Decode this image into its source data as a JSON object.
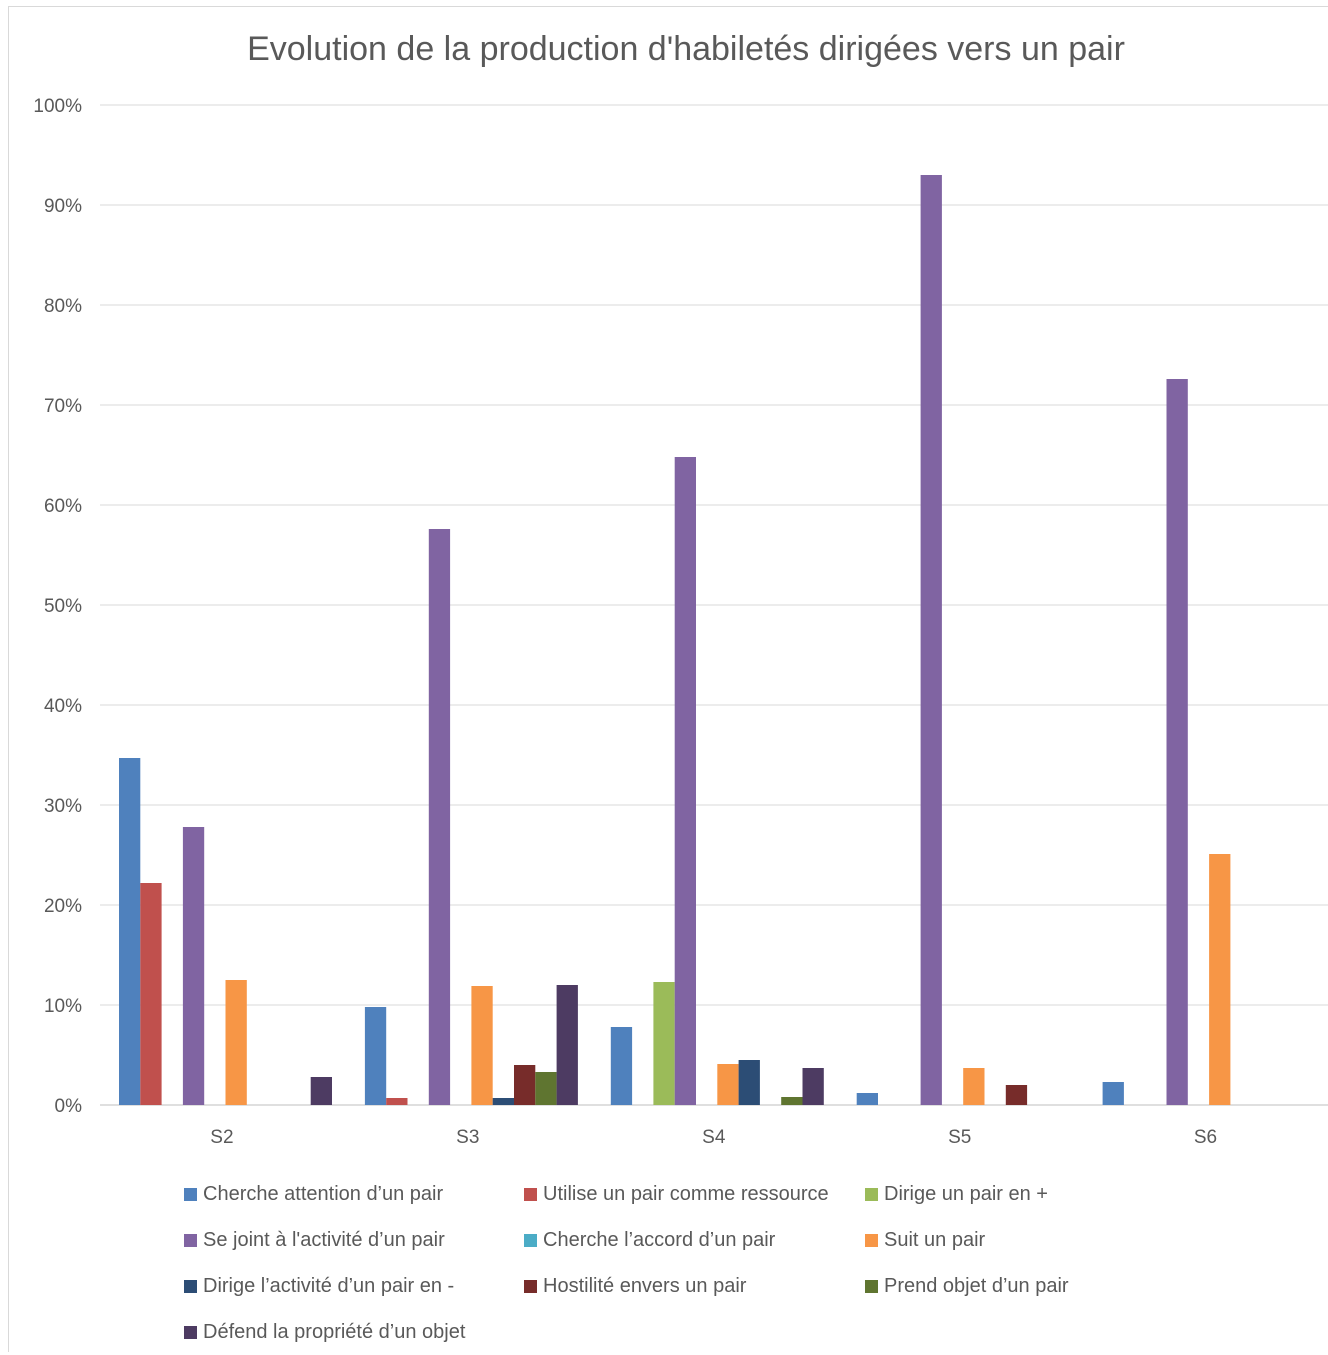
{
  "chart_data": {
    "type": "bar",
    "title": "Evolution de la production d'habiletés dirigées vers un pair",
    "categories": [
      "S2",
      "S3",
      "S4",
      "S5",
      "S6"
    ],
    "ylim": [
      0,
      100
    ],
    "yticks": [
      "0%",
      "10%",
      "20%",
      "30%",
      "40%",
      "50%",
      "60%",
      "70%",
      "80%",
      "90%",
      "100%"
    ],
    "grid": true,
    "legend_position": "bottom",
    "series": [
      {
        "name": "Cherche attention d’un pair",
        "color": "#4f81bd",
        "values": [
          34.7,
          9.8,
          7.8,
          1.2,
          2.3
        ]
      },
      {
        "name": "Utilise un pair comme ressource",
        "color": "#c0504d",
        "values": [
          22.2,
          0.7,
          0,
          0,
          0
        ]
      },
      {
        "name": "Dirige un pair en +",
        "color": "#9bbb59",
        "values": [
          0,
          0,
          12.3,
          0,
          0
        ]
      },
      {
        "name": "Se joint à l'activité d’un pair",
        "color": "#8064a2",
        "values": [
          27.8,
          57.6,
          64.8,
          93.0,
          72.6
        ]
      },
      {
        "name": "Cherche l’accord d’un pair",
        "color": "#4bacc6",
        "values": [
          0,
          0,
          0,
          0,
          0
        ]
      },
      {
        "name": "Suit un pair",
        "color": "#f79646",
        "values": [
          12.5,
          11.9,
          4.1,
          3.7,
          25.1
        ]
      },
      {
        "name": "Dirige l’activité d’un pair en -",
        "color": "#2c4d75",
        "values": [
          0,
          0.7,
          4.5,
          0,
          0
        ]
      },
      {
        "name": "Hostilité envers un pair",
        "color": "#772c2a",
        "values": [
          0,
          4.0,
          0,
          2.0,
          0
        ]
      },
      {
        "name": "Prend objet d’un pair",
        "color": "#5f7530",
        "values": [
          0,
          3.3,
          0.8,
          0,
          0
        ]
      },
      {
        "name": "Défend la propriété d’un objet",
        "color": "#4d3b62",
        "values": [
          2.8,
          12.0,
          3.7,
          0,
          0
        ]
      }
    ]
  }
}
